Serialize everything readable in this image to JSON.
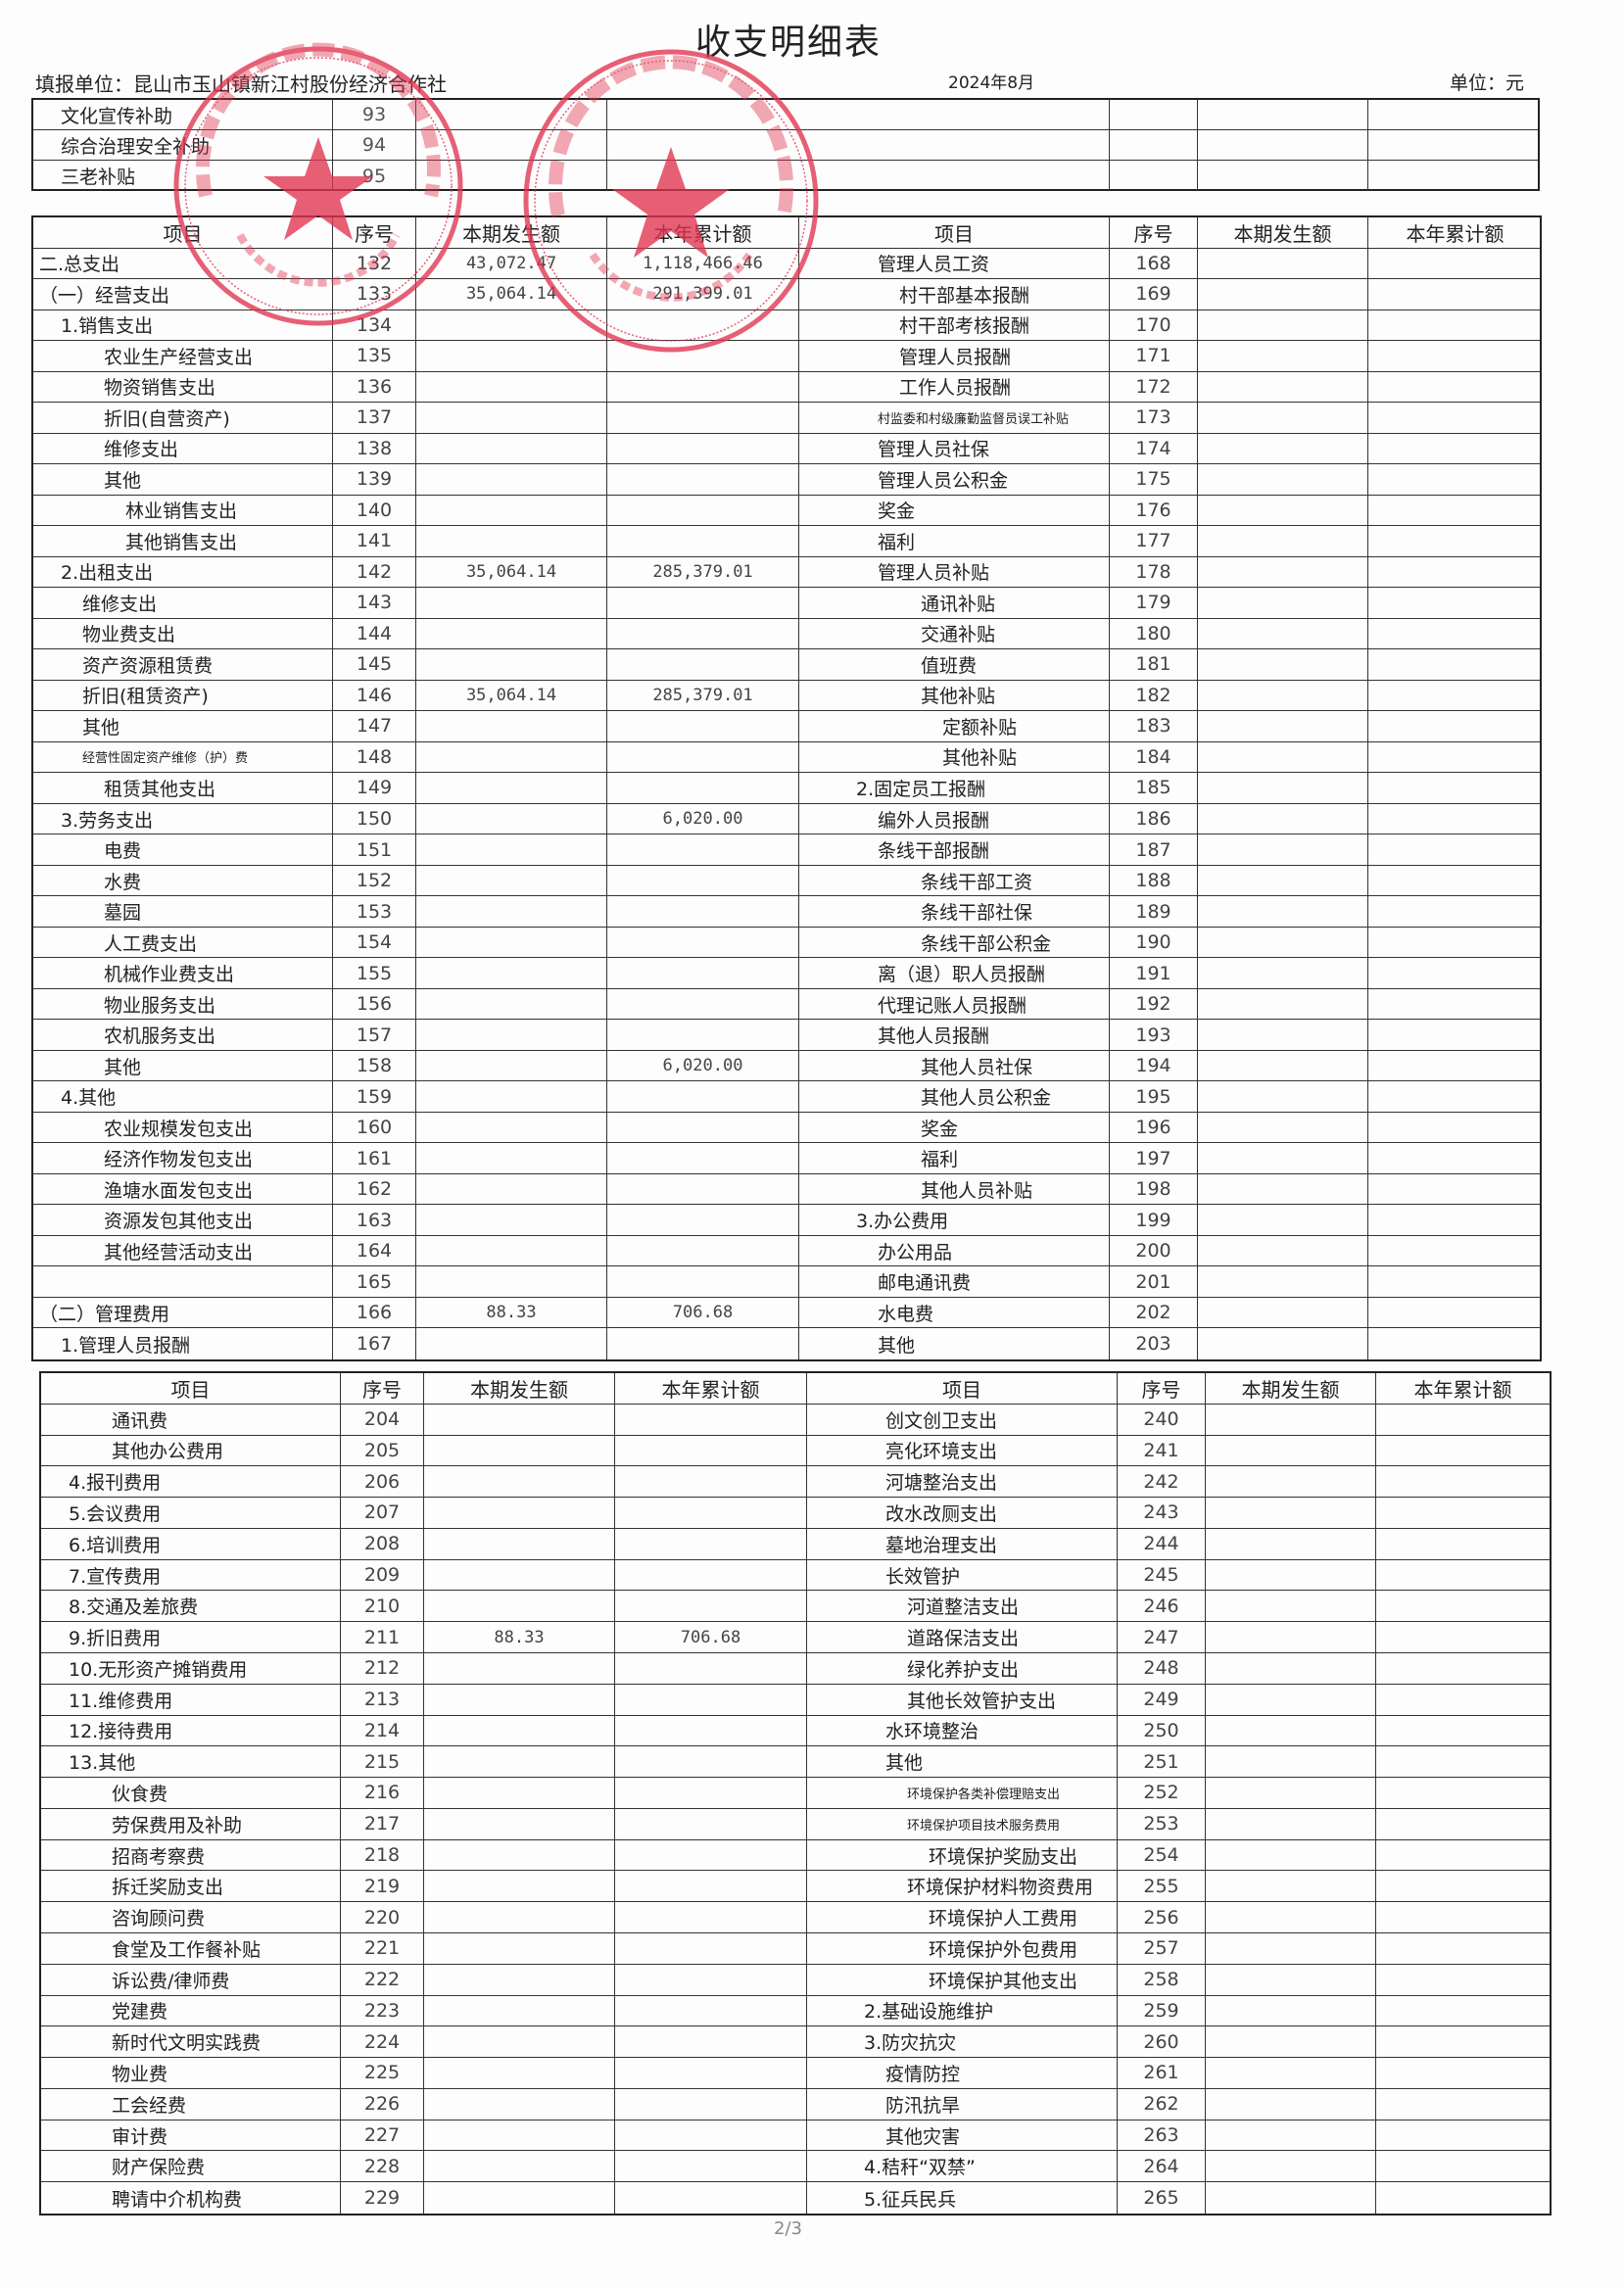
{
  "document": {
    "title": "收支明细表",
    "unit_label": "填报单位：昆山市玉山镇新江村股份经济合作社",
    "period": "2024年8月",
    "currency_unit": "单位：元",
    "page_number": "2/3"
  },
  "stamps": [
    {
      "text": "昆山市玉山镇新江村股份经济合作社",
      "code": "3205830943559",
      "color": "#e0334f"
    },
    {
      "text": "昆山市玉山镇新江村股份经济合作社",
      "code": "3205830943559",
      "color": "#e0334f"
    }
  ],
  "headers": {
    "item": "项目",
    "seq": "序号",
    "current": "本期发生额",
    "ytd": "本年累计额"
  },
  "section1": [
    {
      "item": "文化宣传补助",
      "seq": "93"
    },
    {
      "item": "综合治理安全补助",
      "seq": "94"
    },
    {
      "item": "三老补贴",
      "seq": "95"
    }
  ],
  "section2": {
    "left": [
      {
        "item": "二.总支出",
        "lv": 0,
        "seq": "132",
        "cur": "43,072.47",
        "ytd": "1,118,466.46"
      },
      {
        "item": "（一）经营支出",
        "lv": 0,
        "seq": "133",
        "cur": "35,064.14",
        "ytd": "291,399.01"
      },
      {
        "item": "1.销售支出",
        "lv": 1,
        "seq": "134"
      },
      {
        "item": "农业生产经营支出",
        "lv": 3,
        "seq": "135"
      },
      {
        "item": "物资销售支出",
        "lv": 3,
        "seq": "136"
      },
      {
        "item": "折旧(自营资产)",
        "lv": 3,
        "seq": "137"
      },
      {
        "item": "维修支出",
        "lv": 3,
        "seq": "138"
      },
      {
        "item": "其他",
        "lv": 3,
        "seq": "139"
      },
      {
        "item": "林业销售支出",
        "lv": 4,
        "seq": "140"
      },
      {
        "item": "其他销售支出",
        "lv": 4,
        "seq": "141"
      },
      {
        "item": "2.出租支出",
        "lv": 1,
        "seq": "142",
        "cur": "35,064.14",
        "ytd": "285,379.01"
      },
      {
        "item": "维修支出",
        "lv": 2,
        "seq": "143"
      },
      {
        "item": "物业费支出",
        "lv": 2,
        "seq": "144"
      },
      {
        "item": "资产资源租赁费",
        "lv": 2,
        "seq": "145"
      },
      {
        "item": "折旧(租赁资产)",
        "lv": 2,
        "seq": "146",
        "cur": "35,064.14",
        "ytd": "285,379.01"
      },
      {
        "item": "其他",
        "lv": 2,
        "seq": "147"
      },
      {
        "item": "经营性固定资产维修（护）费",
        "lv": 2,
        "seq": "148",
        "small": true
      },
      {
        "item": "租赁其他支出",
        "lv": 3,
        "seq": "149"
      },
      {
        "item": "3.劳务支出",
        "lv": 1,
        "seq": "150",
        "ytd": "6,020.00"
      },
      {
        "item": "电费",
        "lv": 3,
        "seq": "151"
      },
      {
        "item": "水费",
        "lv": 3,
        "seq": "152"
      },
      {
        "item": "墓园",
        "lv": 3,
        "seq": "153"
      },
      {
        "item": "人工费支出",
        "lv": 3,
        "seq": "154"
      },
      {
        "item": "机械作业费支出",
        "lv": 3,
        "seq": "155"
      },
      {
        "item": "物业服务支出",
        "lv": 3,
        "seq": "156"
      },
      {
        "item": "农机服务支出",
        "lv": 3,
        "seq": "157"
      },
      {
        "item": "其他",
        "lv": 3,
        "seq": "158",
        "ytd": "6,020.00"
      },
      {
        "item": "4.其他",
        "lv": 1,
        "seq": "159"
      },
      {
        "item": "农业规模发包支出",
        "lv": 3,
        "seq": "160"
      },
      {
        "item": "经济作物发包支出",
        "lv": 3,
        "seq": "161"
      },
      {
        "item": "渔塘水面发包支出",
        "lv": 3,
        "seq": "162"
      },
      {
        "item": "资源发包其他支出",
        "lv": 3,
        "seq": "163"
      },
      {
        "item": "其他经营活动支出",
        "lv": 3,
        "seq": "164"
      },
      {
        "item": "",
        "lv": 3,
        "seq": "165"
      },
      {
        "item": "（二）管理费用",
        "lv": 0,
        "seq": "166",
        "cur": "88.33",
        "ytd": "706.68"
      },
      {
        "item": "1.管理人员报酬",
        "lv": 1,
        "seq": "167"
      }
    ],
    "right": [
      {
        "item": "管理人员工资",
        "lv": 2,
        "seq": "168"
      },
      {
        "item": "村干部基本报酬",
        "lv": 3,
        "seq": "169"
      },
      {
        "item": "村干部考核报酬",
        "lv": 3,
        "seq": "170"
      },
      {
        "item": "管理人员报酬",
        "lv": 3,
        "seq": "171"
      },
      {
        "item": "工作人员报酬",
        "lv": 3,
        "seq": "172"
      },
      {
        "item": "村监委和村级廉勤监督员误工补贴",
        "lv": 2,
        "seq": "173",
        "small": true
      },
      {
        "item": "管理人员社保",
        "lv": 2,
        "seq": "174"
      },
      {
        "item": "管理人员公积金",
        "lv": 2,
        "seq": "175"
      },
      {
        "item": "奖金",
        "lv": 2,
        "seq": "176"
      },
      {
        "item": "福利",
        "lv": 2,
        "seq": "177"
      },
      {
        "item": "管理人员补贴",
        "lv": 2,
        "seq": "178"
      },
      {
        "item": "通讯补贴",
        "lv": 4,
        "seq": "179"
      },
      {
        "item": "交通补贴",
        "lv": 4,
        "seq": "180"
      },
      {
        "item": "值班费",
        "lv": 4,
        "seq": "181"
      },
      {
        "item": "其他补贴",
        "lv": 4,
        "seq": "182"
      },
      {
        "item": "定额补贴",
        "lv": 5,
        "seq": "183"
      },
      {
        "item": "其他补贴",
        "lv": 5,
        "seq": "184"
      },
      {
        "item": "2.固定员工报酬",
        "lv": 1,
        "seq": "185"
      },
      {
        "item": "编外人员报酬",
        "lv": 2,
        "seq": "186"
      },
      {
        "item": "条线干部报酬",
        "lv": 2,
        "seq": "187"
      },
      {
        "item": "条线干部工资",
        "lv": 4,
        "seq": "188"
      },
      {
        "item": "条线干部社保",
        "lv": 4,
        "seq": "189"
      },
      {
        "item": "条线干部公积金",
        "lv": 4,
        "seq": "190"
      },
      {
        "item": "离（退）职人员报酬",
        "lv": 2,
        "seq": "191"
      },
      {
        "item": "代理记账人员报酬",
        "lv": 2,
        "seq": "192"
      },
      {
        "item": "其他人员报酬",
        "lv": 2,
        "seq": "193"
      },
      {
        "item": "其他人员社保",
        "lv": 4,
        "seq": "194"
      },
      {
        "item": "其他人员公积金",
        "lv": 4,
        "seq": "195"
      },
      {
        "item": "奖金",
        "lv": 4,
        "seq": "196"
      },
      {
        "item": "福利",
        "lv": 4,
        "seq": "197"
      },
      {
        "item": "其他人员补贴",
        "lv": 4,
        "seq": "198"
      },
      {
        "item": "3.办公费用",
        "lv": 1,
        "seq": "199"
      },
      {
        "item": "办公用品",
        "lv": 2,
        "seq": "200"
      },
      {
        "item": "邮电通讯费",
        "lv": 2,
        "seq": "201"
      },
      {
        "item": "水电费",
        "lv": 2,
        "seq": "202"
      },
      {
        "item": "其他",
        "lv": 2,
        "seq": "203"
      }
    ]
  },
  "section3": {
    "left": [
      {
        "item": "通讯费",
        "lv": 3,
        "seq": "204"
      },
      {
        "item": "其他办公费用",
        "lv": 3,
        "seq": "205"
      },
      {
        "item": "4.报刊费用",
        "lv": 1,
        "seq": "206"
      },
      {
        "item": "5.会议费用",
        "lv": 1,
        "seq": "207"
      },
      {
        "item": "6.培训费用",
        "lv": 1,
        "seq": "208"
      },
      {
        "item": "7.宣传费用",
        "lv": 1,
        "seq": "209"
      },
      {
        "item": "8.交通及差旅费",
        "lv": 1,
        "seq": "210"
      },
      {
        "item": "9.折旧费用",
        "lv": 1,
        "seq": "211",
        "cur": "88.33",
        "ytd": "706.68"
      },
      {
        "item": "10.无形资产摊销费用",
        "lv": 1,
        "seq": "212"
      },
      {
        "item": "11.维修费用",
        "lv": 1,
        "seq": "213"
      },
      {
        "item": "12.接待费用",
        "lv": 1,
        "seq": "214"
      },
      {
        "item": "13.其他",
        "lv": 1,
        "seq": "215"
      },
      {
        "item": "伙食费",
        "lv": 3,
        "seq": "216"
      },
      {
        "item": "劳保费用及补助",
        "lv": 3,
        "seq": "217"
      },
      {
        "item": "招商考察费",
        "lv": 3,
        "seq": "218"
      },
      {
        "item": "拆迁奖励支出",
        "lv": 3,
        "seq": "219"
      },
      {
        "item": "咨询顾问费",
        "lv": 3,
        "seq": "220"
      },
      {
        "item": "食堂及工作餐补贴",
        "lv": 3,
        "seq": "221"
      },
      {
        "item": "诉讼费/律师费",
        "lv": 3,
        "seq": "222"
      },
      {
        "item": "党建费",
        "lv": 3,
        "seq": "223"
      },
      {
        "item": "新时代文明实践费",
        "lv": 3,
        "seq": "224"
      },
      {
        "item": "物业费",
        "lv": 3,
        "seq": "225"
      },
      {
        "item": "工会经费",
        "lv": 3,
        "seq": "226"
      },
      {
        "item": "审计费",
        "lv": 3,
        "seq": "227"
      },
      {
        "item": "财产保险费",
        "lv": 3,
        "seq": "228"
      },
      {
        "item": "聘请中介机构费",
        "lv": 3,
        "seq": "229"
      }
    ],
    "right": [
      {
        "item": "创文创卫支出",
        "lv": 2,
        "seq": "240"
      },
      {
        "item": "亮化环境支出",
        "lv": 2,
        "seq": "241"
      },
      {
        "item": "河塘整治支出",
        "lv": 2,
        "seq": "242"
      },
      {
        "item": "改水改厕支出",
        "lv": 2,
        "seq": "243"
      },
      {
        "item": "墓地治理支出",
        "lv": 2,
        "seq": "244"
      },
      {
        "item": "长效管护",
        "lv": 2,
        "seq": "245"
      },
      {
        "item": "河道整洁支出",
        "lv": 3,
        "seq": "246"
      },
      {
        "item": "道路保洁支出",
        "lv": 3,
        "seq": "247"
      },
      {
        "item": "绿化养护支出",
        "lv": 3,
        "seq": "248"
      },
      {
        "item": "其他长效管护支出",
        "lv": 3,
        "seq": "249"
      },
      {
        "item": "水环境整治",
        "lv": 2,
        "seq": "250"
      },
      {
        "item": "其他",
        "lv": 2,
        "seq": "251"
      },
      {
        "item": "环境保护各类补偿理赔支出",
        "lv": 3,
        "seq": "252",
        "small": true
      },
      {
        "item": "环境保护项目技术服务费用",
        "lv": 3,
        "seq": "253",
        "small": true
      },
      {
        "item": "环境保护奖励支出",
        "lv": 4,
        "seq": "254"
      },
      {
        "item": "环境保护材料物资费用",
        "lv": 3,
        "seq": "255"
      },
      {
        "item": "环境保护人工费用",
        "lv": 4,
        "seq": "256"
      },
      {
        "item": "环境保护外包费用",
        "lv": 4,
        "seq": "257"
      },
      {
        "item": "环境保护其他支出",
        "lv": 4,
        "seq": "258"
      },
      {
        "item": "2.基础设施维护",
        "lv": 1,
        "seq": "259"
      },
      {
        "item": "3.防灾抗灾",
        "lv": 1,
        "seq": "260"
      },
      {
        "item": "疫情防控",
        "lv": 2,
        "seq": "261"
      },
      {
        "item": "防汛抗旱",
        "lv": 2,
        "seq": "262"
      },
      {
        "item": "其他灾害",
        "lv": 2,
        "seq": "263"
      },
      {
        "item": "4.秸秆“双禁”",
        "lv": 1,
        "seq": "264"
      },
      {
        "item": "5.征兵民兵",
        "lv": 1,
        "seq": "265"
      }
    ]
  }
}
